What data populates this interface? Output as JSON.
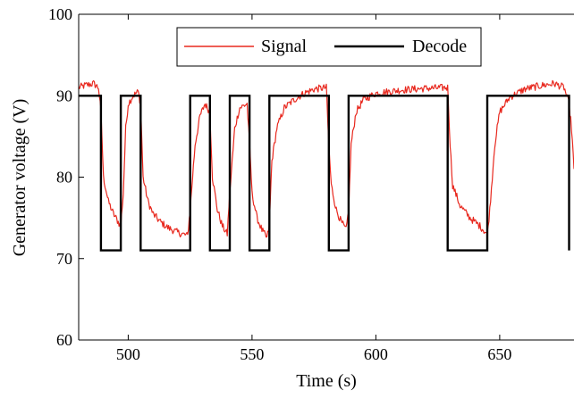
{
  "chart_data": {
    "type": "line",
    "title": "",
    "xlabel": "Time (s)",
    "ylabel": "Generator voltage (V)",
    "xlim": [
      480,
      680
    ],
    "ylim": [
      60,
      100
    ],
    "x_ticks": [
      500,
      550,
      600,
      650
    ],
    "y_ticks": [
      60,
      70,
      80,
      90,
      100
    ],
    "legend": {
      "placement": "top-center",
      "entries": [
        "Signal",
        "Decode"
      ]
    },
    "grid": false,
    "series": [
      {
        "name": "Signal",
        "color": "#e8281e",
        "style": "noisy",
        "points": [
          [
            480,
            91.0
          ],
          [
            483,
            91.3
          ],
          [
            486,
            91.5
          ],
          [
            488,
            91.0
          ],
          [
            489,
            88.0
          ],
          [
            490,
            80.0
          ],
          [
            492,
            77.0
          ],
          [
            494,
            75.5
          ],
          [
            496,
            74.5
          ],
          [
            497,
            74.0
          ],
          [
            498,
            78.0
          ],
          [
            499,
            86.0
          ],
          [
            500,
            89.0
          ],
          [
            502,
            90.0
          ],
          [
            504,
            90.5
          ],
          [
            505,
            89.0
          ],
          [
            506,
            80.0
          ],
          [
            508,
            77.0
          ],
          [
            510,
            75.5
          ],
          [
            513,
            74.5
          ],
          [
            516,
            73.8
          ],
          [
            520,
            73.2
          ],
          [
            524,
            72.8
          ],
          [
            525,
            76.0
          ],
          [
            527,
            84.0
          ],
          [
            529,
            87.5
          ],
          [
            531,
            89.0
          ],
          [
            533,
            88.0
          ],
          [
            534,
            80.0
          ],
          [
            536,
            76.0
          ],
          [
            538,
            74.0
          ],
          [
            540,
            73.0
          ],
          [
            541,
            78.0
          ],
          [
            543,
            86.0
          ],
          [
            545,
            88.5
          ],
          [
            548,
            89.0
          ],
          [
            549,
            84.0
          ],
          [
            550,
            78.0
          ],
          [
            552,
            75.0
          ],
          [
            554,
            73.5
          ],
          [
            556,
            72.5
          ],
          [
            557,
            74.0
          ],
          [
            558,
            82.0
          ],
          [
            560,
            86.0
          ],
          [
            563,
            88.5
          ],
          [
            567,
            89.5
          ],
          [
            571,
            90.3
          ],
          [
            575,
            90.8
          ],
          [
            580,
            91.0
          ],
          [
            581,
            84.0
          ],
          [
            582,
            79.0
          ],
          [
            584,
            76.0
          ],
          [
            586,
            74.5
          ],
          [
            588,
            73.5
          ],
          [
            589,
            76.0
          ],
          [
            590,
            84.0
          ],
          [
            592,
            88.0
          ],
          [
            595,
            89.5
          ],
          [
            600,
            90.3
          ],
          [
            610,
            90.7
          ],
          [
            620,
            90.9
          ],
          [
            629,
            91.0
          ],
          [
            630,
            84.0
          ],
          [
            631,
            79.0
          ],
          [
            634,
            76.5
          ],
          [
            638,
            75.0
          ],
          [
            642,
            74.0
          ],
          [
            645,
            73.0
          ],
          [
            646,
            76.0
          ],
          [
            648,
            84.0
          ],
          [
            650,
            88.0
          ],
          [
            654,
            89.8
          ],
          [
            660,
            90.8
          ],
          [
            666,
            91.2
          ],
          [
            672,
            91.5
          ],
          [
            676,
            91.0
          ],
          [
            678,
            89.0
          ],
          [
            679,
            86.0
          ],
          [
            680,
            81.0
          ]
        ]
      },
      {
        "name": "Decode",
        "color": "#000000",
        "style": "step",
        "points": [
          [
            480,
            90
          ],
          [
            489,
            90
          ],
          [
            489,
            71
          ],
          [
            497,
            71
          ],
          [
            497,
            90
          ],
          [
            505,
            90
          ],
          [
            505,
            71
          ],
          [
            525,
            71
          ],
          [
            525,
            90
          ],
          [
            533,
            90
          ],
          [
            533,
            71
          ],
          [
            541,
            71
          ],
          [
            541,
            90
          ],
          [
            549,
            90
          ],
          [
            549,
            71
          ],
          [
            557,
            71
          ],
          [
            557,
            90
          ],
          [
            581,
            90
          ],
          [
            581,
            71
          ],
          [
            589,
            71
          ],
          [
            589,
            90
          ],
          [
            629,
            90
          ],
          [
            629,
            71
          ],
          [
            645,
            71
          ],
          [
            645,
            90
          ],
          [
            678,
            90
          ],
          [
            678,
            71
          ]
        ]
      }
    ]
  }
}
